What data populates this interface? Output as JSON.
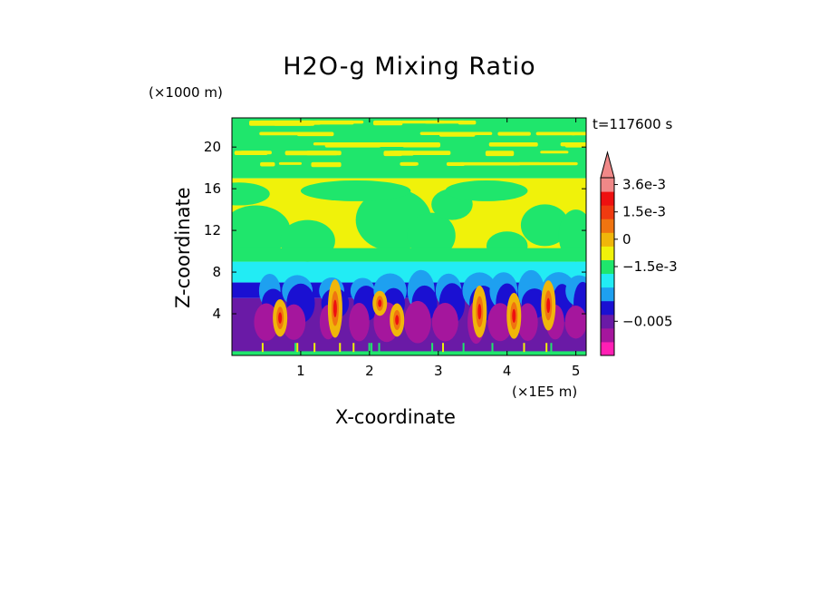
{
  "chart_data": {
    "type": "heatmap",
    "title": "H2O-g Mixing Ratio",
    "xlabel": "X-coordinate",
    "ylabel": "Z-coordinate",
    "x_unit": "(×1E5 m)",
    "y_unit": "(×1000 m)",
    "time_label": "t=117600 s",
    "xlim": [
      0,
      5.15
    ],
    "ylim": [
      0,
      22.8
    ],
    "x_ticks": [
      {
        "value": 1,
        "label": "1"
      },
      {
        "value": 2,
        "label": "2"
      },
      {
        "value": 3,
        "label": "3"
      },
      {
        "value": 4,
        "label": "4"
      },
      {
        "value": 5,
        "label": "5"
      }
    ],
    "y_ticks": [
      {
        "value": 4,
        "label": "4"
      },
      {
        "value": 8,
        "label": "8"
      },
      {
        "value": 12,
        "label": "12"
      },
      {
        "value": 16,
        "label": "16"
      },
      {
        "value": 20,
        "label": "20"
      }
    ],
    "colorbar": {
      "levels": [
        "#ff1fb4",
        "#a5169d",
        "#6a1aa6",
        "#1a10d2",
        "#1ea0f0",
        "#22ecf4",
        "#1fe66c",
        "#f0f20a",
        "#f0b60a",
        "#f07410",
        "#f03a10",
        "#ee1010",
        "#f08888"
      ],
      "labels": [
        {
          "text": "3.6e-3",
          "level": 12
        },
        {
          "text": "1.5e-3",
          "level": 10
        },
        {
          "text": "0",
          "level": 8
        },
        {
          "text": "−1.5e-3",
          "level": 6
        },
        {
          "text": "−0.005",
          "level": 2
        }
      ]
    },
    "field_description_bands": [
      {
        "z_range": [
          0,
          1.5
        ],
        "dominant": "purple"
      },
      {
        "z_range": [
          1.5,
          7
        ],
        "dominant": "purple/blue with orange-red plumes"
      },
      {
        "z_range": [
          7,
          9
        ],
        "dominant": "cyan"
      },
      {
        "z_range": [
          9,
          17
        ],
        "dominant": "yellow/green"
      },
      {
        "z_range": [
          17,
          22.8
        ],
        "dominant": "green with yellow streaks"
      }
    ],
    "colors": {
      "magenta": "#ff1fb4",
      "purple": "#6a1aa6",
      "dark_purple": "#a5169d",
      "blue": "#1a10d2",
      "sky": "#1ea0f0",
      "cyan": "#22ecf4",
      "green": "#1fe66c",
      "yellow": "#f0f20a",
      "orange": "#f0b60a",
      "dark_orange": "#f07410",
      "red": "#ee1010",
      "pink": "#f08888"
    }
  }
}
